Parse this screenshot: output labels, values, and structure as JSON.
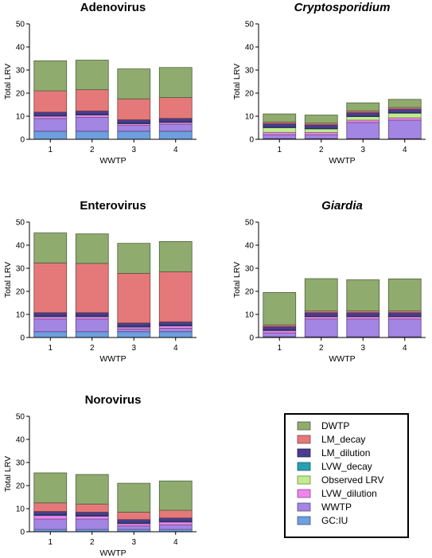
{
  "colors": {
    "DWTP": "#8fac6e",
    "LM_decay": "#e5797a",
    "LM_dilution": "#4b3c8e",
    "LVW_decay": "#2a9fb4",
    "Observed LRV": "#c3ec8e",
    "LVW_dilution": "#f184ee",
    "WWTP": "#a385e4",
    "GC:IU": "#6e9fde"
  },
  "legend": {
    "entries": [
      "DWTP",
      "LM_decay",
      "LM_dilution",
      "LVW_decay",
      "Observed LRV",
      "LVW_dilution",
      "WWTP",
      "GC:IU"
    ]
  },
  "chart_data": [
    {
      "type": "bar",
      "stacked": true,
      "title": "Adenovirus",
      "title_italic": false,
      "xlabel": "WWTP",
      "ylabel": "Total LRV",
      "ylim": [
        0,
        50
      ],
      "yticks": [
        0,
        10,
        20,
        30,
        40,
        50
      ],
      "categories": [
        "1",
        "2",
        "3",
        "4"
      ],
      "series": [
        {
          "name": "GC:IU",
          "values": [
            3.5,
            3.5,
            3.5,
            3.5
          ]
        },
        {
          "name": "WWTP",
          "values": [
            5.5,
            6.0,
            2.5,
            3.0
          ]
        },
        {
          "name": "LVW_dilution",
          "values": [
            1.0,
            1.0,
            0.7,
            0.8
          ]
        },
        {
          "name": "Observed LRV",
          "values": [
            0,
            0,
            0,
            0
          ]
        },
        {
          "name": "LVW_decay",
          "values": [
            0.3,
            0.3,
            0.3,
            0.3
          ]
        },
        {
          "name": "LM_dilution",
          "values": [
            1.5,
            1.5,
            1.5,
            1.5
          ]
        },
        {
          "name": "LM_decay",
          "values": [
            9.2,
            9.2,
            9.0,
            9.0
          ]
        },
        {
          "name": "DWTP",
          "values": [
            13.0,
            12.8,
            13.0,
            13.0
          ]
        }
      ]
    },
    {
      "type": "bar",
      "stacked": true,
      "title": "Cryptosporidium",
      "title_italic": true,
      "xlabel": "WWTP",
      "ylabel": "Total LRV",
      "ylim": [
        0,
        50
      ],
      "yticks": [
        0,
        10,
        20,
        30,
        40,
        50
      ],
      "categories": [
        "1",
        "2",
        "3",
        "4"
      ],
      "series": [
        {
          "name": "GC:IU",
          "values": [
            0.3,
            0.3,
            0.3,
            0.3
          ]
        },
        {
          "name": "WWTP",
          "values": [
            1.7,
            1.7,
            7.0,
            8.0
          ]
        },
        {
          "name": "LVW_dilution",
          "values": [
            1.0,
            1.0,
            1.0,
            1.0
          ]
        },
        {
          "name": "Observed LRV",
          "values": [
            2.0,
            1.5,
            1.5,
            2.0
          ]
        },
        {
          "name": "LVW_decay",
          "values": [
            0.2,
            0.2,
            0.2,
            0.2
          ]
        },
        {
          "name": "LM_dilution",
          "values": [
            1.6,
            1.6,
            1.6,
            1.6
          ]
        },
        {
          "name": "LM_decay",
          "values": [
            0.7,
            0.7,
            0.7,
            0.7
          ]
        },
        {
          "name": "DWTP",
          "values": [
            3.5,
            3.5,
            3.5,
            3.5
          ]
        }
      ]
    },
    {
      "type": "bar",
      "stacked": true,
      "title": "Enterovirus",
      "title_italic": false,
      "xlabel": "WWTP",
      "ylabel": "Total LRV",
      "ylim": [
        0,
        50
      ],
      "yticks": [
        0,
        10,
        20,
        30,
        40,
        50
      ],
      "categories": [
        "1",
        "2",
        "3",
        "4"
      ],
      "series": [
        {
          "name": "GC:IU",
          "values": [
            2.5,
            2.5,
            2.5,
            2.5
          ]
        },
        {
          "name": "WWTP",
          "values": [
            5.5,
            5.5,
            1.2,
            1.5
          ]
        },
        {
          "name": "LVW_dilution",
          "values": [
            1.0,
            1.0,
            0.8,
            1.0
          ]
        },
        {
          "name": "Observed LRV",
          "values": [
            0,
            0,
            0,
            0
          ]
        },
        {
          "name": "LVW_decay",
          "values": [
            0.3,
            0.3,
            0.3,
            0.3
          ]
        },
        {
          "name": "LM_dilution",
          "values": [
            1.5,
            1.5,
            1.5,
            1.5
          ]
        },
        {
          "name": "LM_decay",
          "values": [
            21.5,
            21.3,
            21.5,
            21.7
          ]
        },
        {
          "name": "DWTP",
          "values": [
            13.0,
            12.8,
            13.0,
            13.1
          ]
        }
      ]
    },
    {
      "type": "bar",
      "stacked": true,
      "title": "Giardia",
      "title_italic": true,
      "xlabel": "WWTP",
      "ylabel": "Total LRV",
      "ylim": [
        0,
        50
      ],
      "yticks": [
        0,
        10,
        20,
        30,
        40,
        50
      ],
      "categories": [
        "1",
        "2",
        "3",
        "4"
      ],
      "series": [
        {
          "name": "GC:IU",
          "values": [
            0.3,
            0.3,
            0.3,
            0.3
          ]
        },
        {
          "name": "WWTP",
          "values": [
            1.7,
            7.7,
            7.7,
            7.7
          ]
        },
        {
          "name": "LVW_dilution",
          "values": [
            1.0,
            1.0,
            1.0,
            1.0
          ]
        },
        {
          "name": "Observed LRV",
          "values": [
            0,
            0,
            0,
            0
          ]
        },
        {
          "name": "LVW_decay",
          "values": [
            0.2,
            0.2,
            0.2,
            0.2
          ]
        },
        {
          "name": "LM_dilution",
          "values": [
            1.6,
            1.6,
            1.6,
            1.6
          ]
        },
        {
          "name": "LM_decay",
          "values": [
            0.7,
            0.7,
            0.7,
            0.7
          ]
        },
        {
          "name": "DWTP",
          "values": [
            14.0,
            14.0,
            13.5,
            13.9
          ]
        }
      ]
    },
    {
      "type": "bar",
      "stacked": true,
      "title": "Norovirus",
      "title_italic": false,
      "xlabel": "WWTP",
      "ylabel": "Total LRV",
      "ylim": [
        0,
        50
      ],
      "yticks": [
        0,
        10,
        20,
        30,
        40,
        50
      ],
      "categories": [
        "1",
        "2",
        "3",
        "4"
      ],
      "series": [
        {
          "name": "GC:IU",
          "values": [
            1.0,
            1.0,
            1.0,
            1.0
          ]
        },
        {
          "name": "WWTP",
          "values": [
            4.5,
            4.5,
            1.5,
            2.0
          ]
        },
        {
          "name": "LVW_dilution",
          "values": [
            1.5,
            1.2,
            1.0,
            1.2
          ]
        },
        {
          "name": "Observed LRV",
          "values": [
            0,
            0,
            0,
            0
          ]
        },
        {
          "name": "LVW_decay",
          "values": [
            0.3,
            0.3,
            0.3,
            0.3
          ]
        },
        {
          "name": "LM_dilution",
          "values": [
            1.5,
            1.5,
            1.5,
            1.5
          ]
        },
        {
          "name": "LM_decay",
          "values": [
            3.7,
            3.5,
            3.2,
            3.3
          ]
        },
        {
          "name": "DWTP",
          "values": [
            13.0,
            12.8,
            12.5,
            12.7
          ]
        }
      ]
    }
  ]
}
